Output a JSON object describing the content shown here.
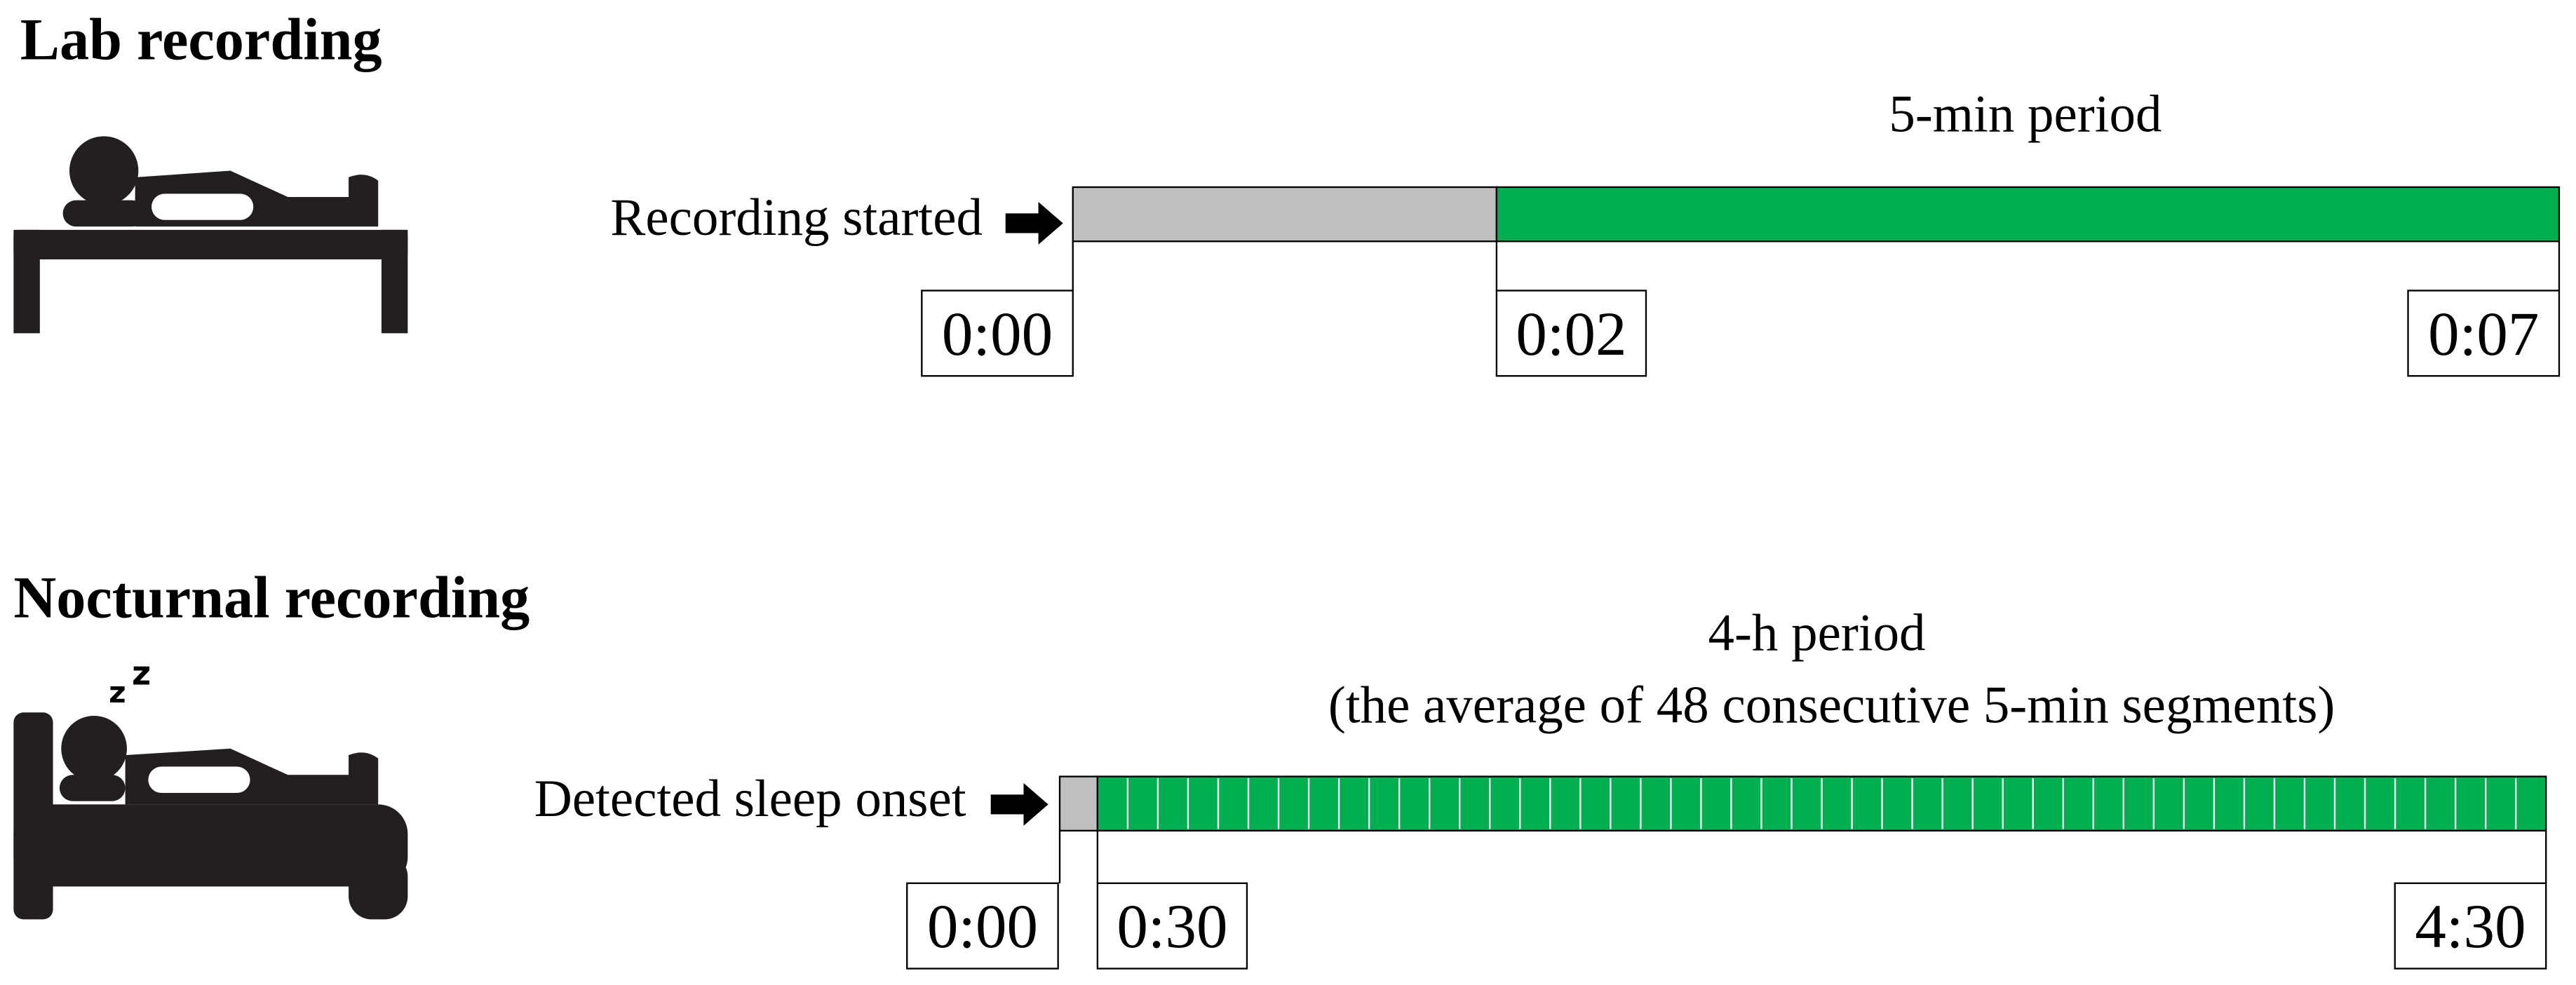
{
  "panels": [
    {
      "title": "Lab recording",
      "start_label": "Recording started",
      "period_label": "5-min period",
      "times": [
        "0:00",
        "0:02",
        "0:07"
      ]
    },
    {
      "title": "Nocturnal recording",
      "start_label": "Detected sleep onset",
      "period_label": "4-h period",
      "period_sublabel": "(the average of 48 consecutive 5-min segments)",
      "times": [
        "0:00",
        "0:30",
        "4:30"
      ]
    }
  ]
}
